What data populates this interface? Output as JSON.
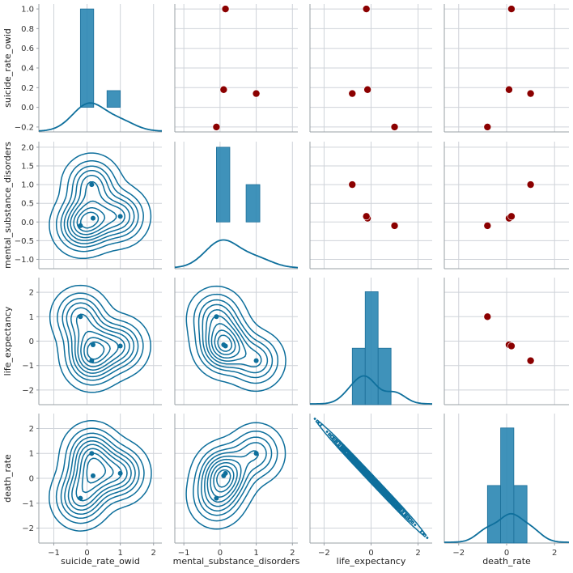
{
  "chart_data": {
    "type": "scatter",
    "variables": [
      "suicide_rate_owid",
      "mental_substance_disorders",
      "life_expectancy",
      "death_rate"
    ],
    "points": {
      "suicide_rate_owid": [
        -0.2,
        0.18,
        1.0,
        0.14
      ],
      "mental_substance_disorders": [
        -0.1,
        0.1,
        0.15,
        1.0
      ],
      "life_expectancy": [
        1.0,
        -0.15,
        -0.2,
        -0.8
      ],
      "death_rate": [
        -0.8,
        0.1,
        0.2,
        1.0
      ]
    },
    "histograms": {
      "suicide_rate_owid": {
        "bins": [
          [
            -0.2,
            0.2,
            1.0
          ],
          [
            0.6,
            1.0,
            0.17
          ]
        ],
        "ylim": [
          -0.25,
          1.05
        ]
      },
      "mental_substance_disorders": {
        "bins": [
          [
            -0.1,
            0.27,
            2.0
          ],
          [
            0.72,
            1.1,
            1.0
          ]
        ],
        "ylim": [
          -1.25,
          2.15
        ]
      },
      "life_expectancy": {
        "bins": [
          [
            -0.8,
            -0.25,
            1.0
          ],
          [
            -0.25,
            0.3,
            2.0
          ],
          [
            0.3,
            0.85,
            1.0
          ]
        ]
      },
      "death_rate": {
        "bins": [
          [
            -0.8,
            -0.25,
            1.0
          ],
          [
            -0.25,
            0.3,
            2.0
          ],
          [
            0.3,
            0.85,
            1.0
          ]
        ]
      }
    },
    "axes": {
      "suicide_rate_owid": {
        "range": [
          -1.45,
          2.25
        ],
        "ticks": [
          -1,
          0,
          1,
          2
        ],
        "yticks": [
          -0.2,
          0.0,
          0.2,
          0.4,
          0.6,
          0.8,
          1.0
        ],
        "ylim": [
          -0.25,
          1.05
        ]
      },
      "mental_substance_disorders": {
        "range": [
          -1.25,
          2.15
        ],
        "ticks": [
          -1,
          0,
          1,
          2
        ],
        "yticks": [
          -1.0,
          -0.5,
          0.0,
          0.5,
          1.0,
          1.5,
          2.0
        ]
      },
      "life_expectancy": {
        "range": [
          -2.6,
          2.6
        ],
        "ticks": [
          -2,
          0,
          2
        ],
        "yticks": [
          -2,
          -1,
          0,
          1,
          2
        ]
      },
      "death_rate": {
        "range": [
          -2.6,
          2.6
        ],
        "ticks": [
          -2,
          0,
          2
        ],
        "yticks": [
          -2,
          -1,
          0,
          1,
          2
        ]
      }
    },
    "tick_labels": {
      "x": {
        "suicide_rate_owid": [
          "−1",
          "0",
          "1",
          "2"
        ],
        "mental_substance_disorders": [
          "−1",
          "0",
          "1",
          "2"
        ],
        "life_expectancy": [
          "−2",
          "0",
          "2"
        ],
        "death_rate": [
          "−2",
          "0",
          "2"
        ]
      },
      "y": {
        "suicide_rate_owid": [
          "−0.2",
          "0.0",
          "0.2",
          "0.4",
          "0.6",
          "0.8",
          "1.0"
        ],
        "mental_substance_disorders": [
          "−1.0",
          "−0.5",
          "0.0",
          "0.5",
          "1.0",
          "1.5",
          "2.0"
        ],
        "life_expectancy": [
          "−2",
          "−1",
          "0",
          "1",
          "2"
        ],
        "death_rate": [
          "−2",
          "−1",
          "0",
          "1",
          "2"
        ]
      }
    },
    "upper": "scatter",
    "diagonal": "histogram + kde",
    "lower": "kde contours + points",
    "grid": true
  },
  "style": {
    "scatter_color": "#8b0000",
    "kde_color": "#0e6f9c",
    "hist_fill": "#2a86b3",
    "grid_color": "#cfd3d9",
    "axis_color": "#9aa0a6"
  }
}
